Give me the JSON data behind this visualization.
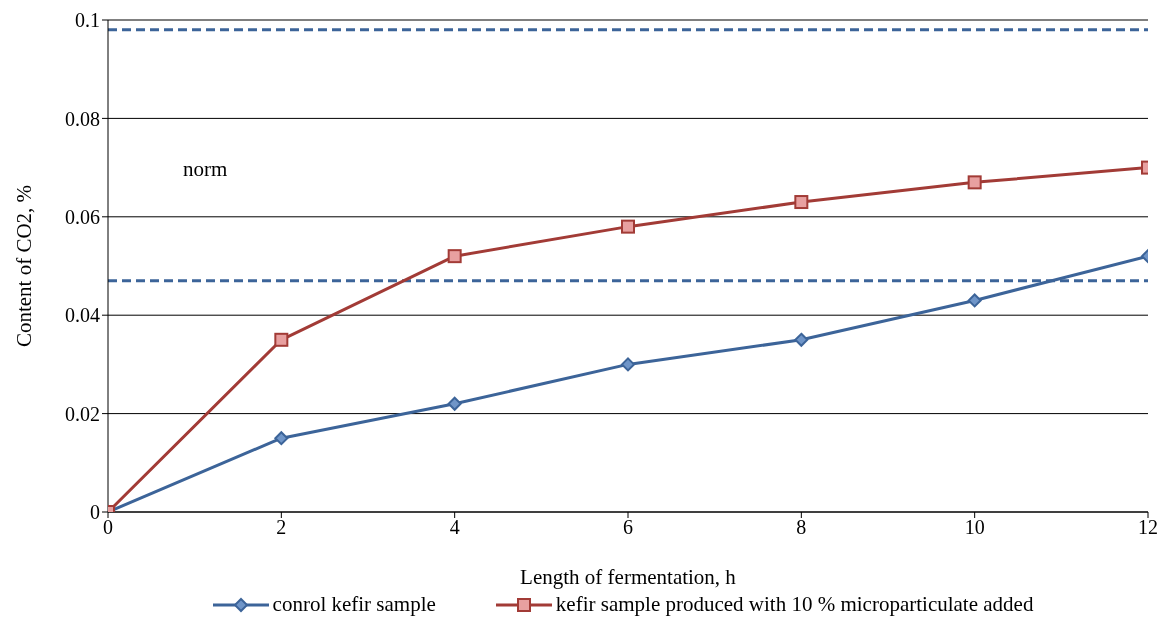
{
  "chart_data": {
    "type": "line",
    "xlabel": "Length of fermentation, h",
    "ylabel": "Content of CO2, %",
    "x": [
      0,
      2,
      4,
      6,
      8,
      10,
      12
    ],
    "series": [
      {
        "name": "conrol kefir sample",
        "color": "#3c6499",
        "marker": "diamond",
        "values": [
          0,
          0.015,
          0.022,
          0.03,
          0.035,
          0.043,
          0.052
        ]
      },
      {
        "name": "kefir sample produced with 10 % microparticulate added",
        "color": "#a23b36",
        "marker": "square",
        "values": [
          0,
          0.035,
          0.052,
          0.058,
          0.063,
          0.067,
          0.07
        ]
      }
    ],
    "xlim": [
      0,
      12
    ],
    "xticks": [
      0,
      2,
      4,
      6,
      8,
      10,
      12
    ],
    "ylim": [
      0,
      0.1
    ],
    "yticks": [
      0,
      0.02,
      0.04,
      0.06,
      0.08,
      0.1
    ],
    "grid": "y",
    "legend": "bottom",
    "line_style": "solid",
    "ref_lines": [
      {
        "axis": "y",
        "value": 0.098,
        "color": "#3c6499",
        "line_style": "dashed"
      },
      {
        "axis": "y",
        "value": 0.047,
        "color": "#3c6499",
        "line_style": "dashed"
      }
    ],
    "annotations": [
      "norm"
    ]
  }
}
